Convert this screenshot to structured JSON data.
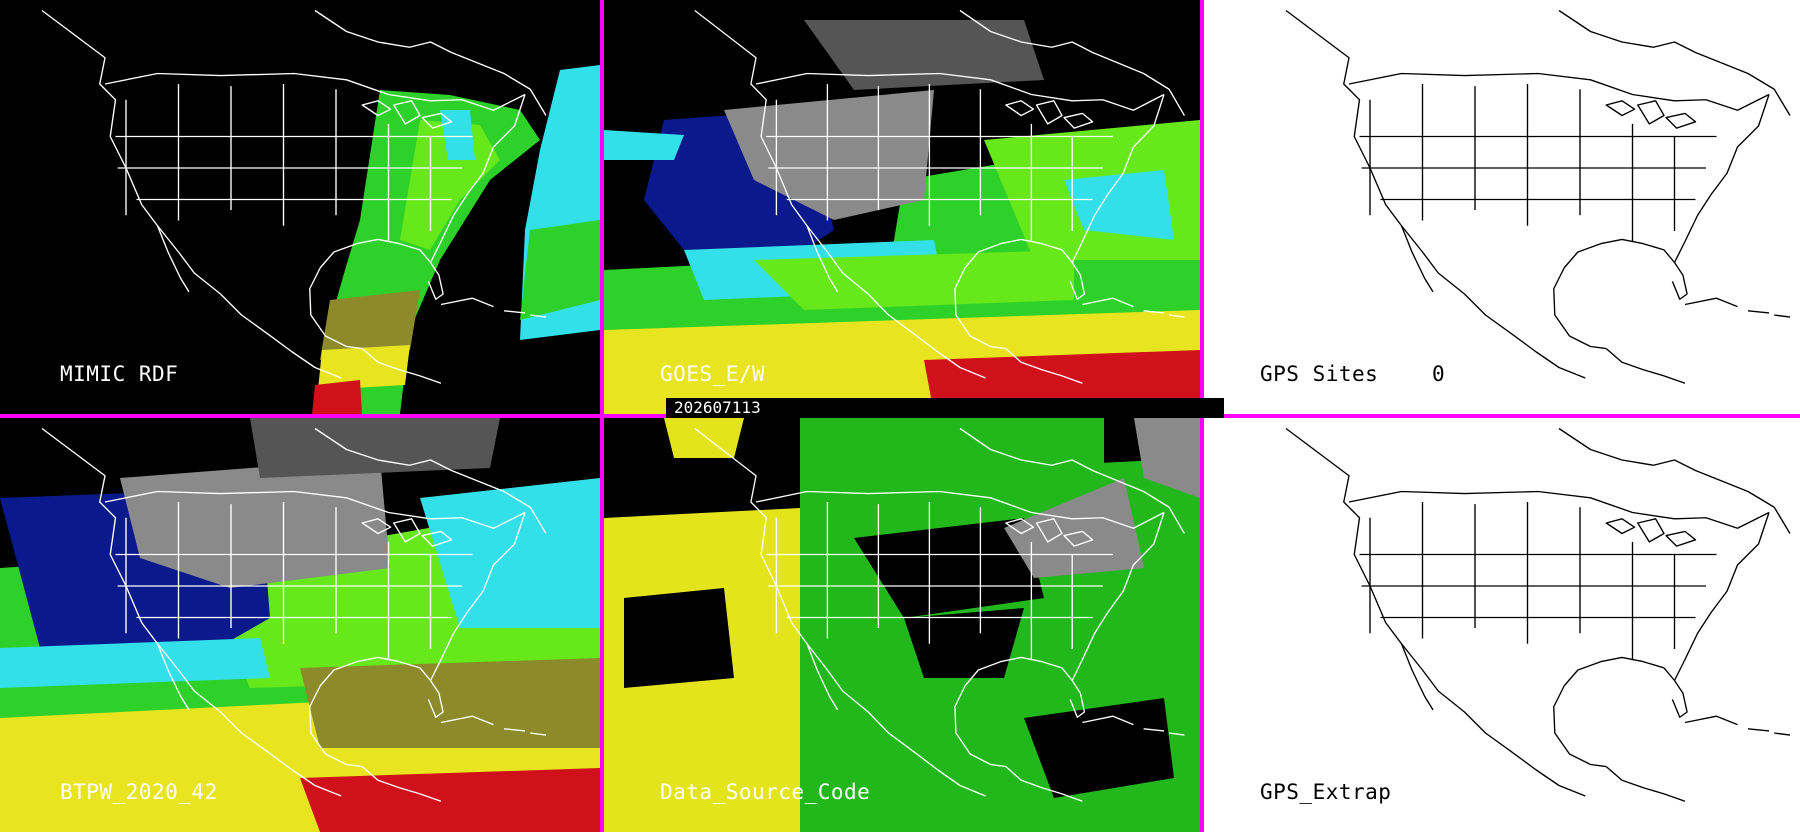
{
  "panels": [
    {
      "id": "mimic-rdf",
      "label": "MIMIC RDF"
    },
    {
      "id": "goes-ew",
      "label": "GOES_E/W"
    },
    {
      "id": "gps-sites",
      "label": "GPS Sites",
      "count": "0"
    },
    {
      "id": "btpw",
      "label": "BTPW_2020_42"
    },
    {
      "id": "data-source-code",
      "label": "Data_Source_Code"
    },
    {
      "id": "gps-extrap",
      "label": "GPS_Extrap"
    }
  ],
  "timestamp": "202607113",
  "colors": {
    "divider": "#ff00ff",
    "cyan": "#33e0ea",
    "green_light": "#66e81a",
    "green_mid": "#2ed02a",
    "green_dark": "#169a22",
    "olive": "#8c8a2a",
    "yellow": "#e8e420",
    "red": "#d0101a",
    "navy": "#0a1a8c",
    "gray": "#8a8a8a",
    "dsc_green": "#22b81c",
    "dsc_yellow": "#e4e41c"
  }
}
